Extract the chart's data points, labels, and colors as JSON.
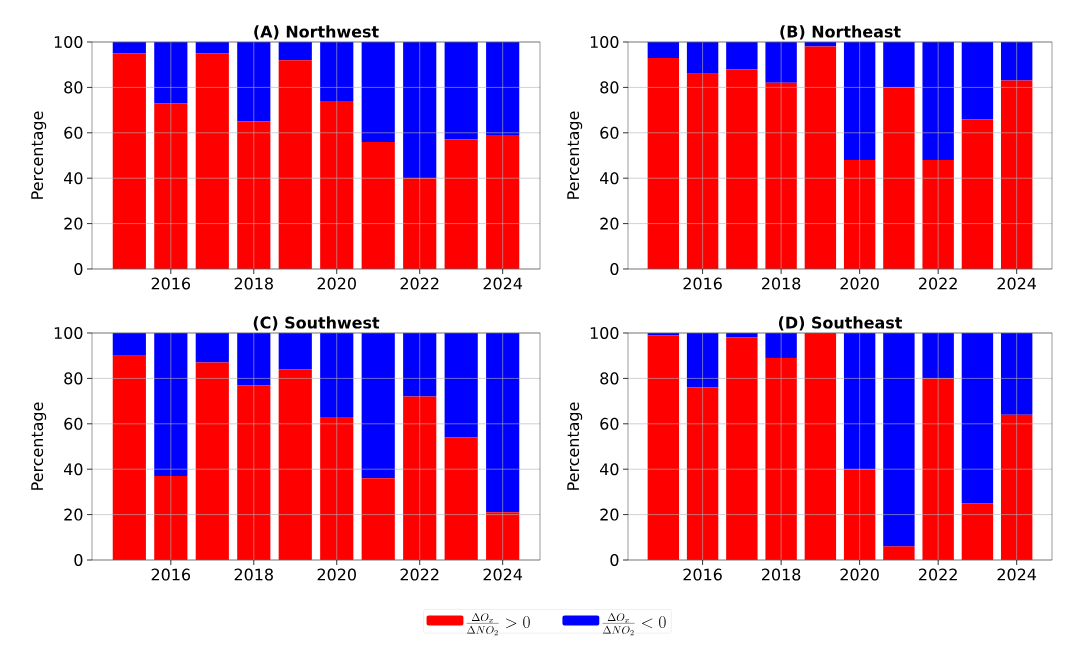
{
  "chart_data": [
    {
      "type": "bar",
      "title": "(A) Northwest",
      "ylabel": "Percentage",
      "stacked": true,
      "grid": true,
      "x": [
        2015,
        2016,
        2017,
        2018,
        2019,
        2020,
        2021,
        2022,
        2023,
        2024
      ],
      "xlim": [
        2014.1,
        2024.9
      ],
      "xticks": [
        2016,
        2018,
        2020,
        2022,
        2024
      ],
      "ylim": [
        0,
        100
      ],
      "yticks": [
        0,
        20,
        40,
        60,
        80,
        100
      ],
      "series": [
        {
          "color": "#ff0000",
          "values": [
            95,
            73,
            95,
            65,
            92,
            74,
            56,
            40,
            57,
            59
          ]
        },
        {
          "color": "#0000ff",
          "values": [
            5,
            27,
            5,
            35,
            8,
            26,
            44,
            60,
            43,
            41
          ]
        }
      ]
    },
    {
      "type": "bar",
      "title": "(B) Northeast",
      "ylabel": "Percentage",
      "stacked": true,
      "grid": true,
      "x": [
        2015,
        2016,
        2017,
        2018,
        2019,
        2020,
        2021,
        2022,
        2023,
        2024
      ],
      "xlim": [
        2014.1,
        2024.9
      ],
      "xticks": [
        2016,
        2018,
        2020,
        2022,
        2024
      ],
      "ylim": [
        0,
        100
      ],
      "yticks": [
        0,
        20,
        40,
        60,
        80,
        100
      ],
      "series": [
        {
          "color": "#ff0000",
          "values": [
            93,
            86,
            88,
            82,
            98,
            48,
            80,
            48,
            66,
            83
          ]
        },
        {
          "color": "#0000ff",
          "values": [
            7,
            14,
            12,
            18,
            2,
            52,
            20,
            52,
            34,
            17
          ]
        }
      ]
    },
    {
      "type": "bar",
      "title": "(C) Southwest",
      "ylabel": "Percentage",
      "stacked": true,
      "grid": true,
      "x": [
        2015,
        2016,
        2017,
        2018,
        2019,
        2020,
        2021,
        2022,
        2023,
        2024
      ],
      "xlim": [
        2014.1,
        2024.9
      ],
      "xticks": [
        2016,
        2018,
        2020,
        2022,
        2024
      ],
      "ylim": [
        0,
        100
      ],
      "yticks": [
        0,
        20,
        40,
        60,
        80,
        100
      ],
      "series": [
        {
          "color": "#ff0000",
          "values": [
            90,
            37,
            87,
            77,
            84,
            63,
            36,
            72,
            54,
            21
          ]
        },
        {
          "color": "#0000ff",
          "values": [
            10,
            63,
            13,
            23,
            16,
            37,
            64,
            28,
            46,
            79
          ]
        }
      ]
    },
    {
      "type": "bar",
      "title": "(D) Southeast",
      "ylabel": "Percentage",
      "stacked": true,
      "grid": true,
      "legend": "bottom",
      "x": [
        2015,
        2016,
        2017,
        2018,
        2019,
        2020,
        2021,
        2022,
        2023,
        2024
      ],
      "xlim": [
        2014.1,
        2024.9
      ],
      "xticks": [
        2016,
        2018,
        2020,
        2022,
        2024
      ],
      "ylim": [
        0,
        100
      ],
      "yticks": [
        0,
        20,
        40,
        60,
        80,
        100
      ],
      "series": [
        {
          "name": "\\frac{\\Delta O_x}{\\Delta NO_2} > 0",
          "color": "#ff0000",
          "values": [
            99,
            76,
            98,
            89,
            100,
            40,
            6,
            80,
            25,
            64
          ]
        },
        {
          "name": "\\frac{\\Delta O_x}{\\Delta NO_2} < 0",
          "color": "#0000ff",
          "values": [
            1,
            24,
            2,
            11,
            0,
            60,
            94,
            20,
            75,
            36
          ]
        }
      ]
    }
  ]
}
